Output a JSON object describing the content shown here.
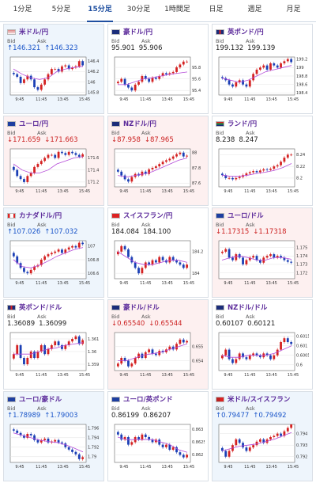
{
  "tabs": [
    {
      "label": "1分足",
      "active": false
    },
    {
      "label": "5分足",
      "active": false
    },
    {
      "label": "15分足",
      "active": true
    },
    {
      "label": "30分足",
      "active": false
    },
    {
      "label": "1時間足",
      "active": false
    },
    {
      "label": "日足",
      "active": false
    },
    {
      "label": "週足",
      "active": false
    },
    {
      "label": "月足",
      "active": false
    }
  ],
  "labels": {
    "bid": "Bid",
    "ask": "Ask"
  },
  "xticks": [
    "9:45",
    "11:45",
    "13:45",
    "15:45"
  ],
  "colors": {
    "up_bar": "#d42121",
    "down_bar": "#1b3fb5",
    "ma": "#b44ad8",
    "name": "#5b2a9a"
  },
  "cards": [
    {
      "name": "米ドル/円",
      "dir": "up",
      "bid": "146.321",
      "ask": "146.323",
      "flag": "us-flag-icon",
      "chart_data": {
        "type": "candlestick",
        "yticks": [
          "146.4",
          "146.2",
          "146",
          "145.8"
        ],
        "ylim": [
          145.75,
          146.48
        ],
        "closes": [
          146.15,
          146.1,
          145.98,
          146.05,
          146.12,
          146.05,
          145.9,
          145.85,
          145.95,
          146.05,
          146.15,
          146.25,
          146.25,
          146.2,
          146.3,
          146.32,
          146.25,
          146.28,
          146.3,
          146.4,
          146.32
        ],
        "ma": [
          146.25,
          146.15,
          146.08,
          146.05,
          146.08,
          146.2,
          146.25,
          146.28,
          146.3
        ]
      }
    },
    {
      "name": "豪ドル/円",
      "dir": "flat",
      "bid": "95.901",
      "ask": "95.906",
      "flag": "au-flag-icon",
      "chart_data": {
        "type": "candlestick",
        "yticks": [
          "95.8",
          "95.6",
          "95.4"
        ],
        "ylim": [
          95.32,
          95.98
        ],
        "closes": [
          95.55,
          95.6,
          95.5,
          95.45,
          95.4,
          95.5,
          95.55,
          95.65,
          95.6,
          95.55,
          95.62,
          95.6,
          95.65,
          95.7,
          95.68,
          95.7,
          95.72,
          95.8,
          95.85,
          95.9,
          95.9
        ],
        "ma": [
          95.5,
          95.5,
          95.55,
          95.6,
          95.62,
          95.65,
          95.68,
          95.7,
          95.72
        ]
      }
    },
    {
      "name": "英ポンド/円",
      "dir": "flat",
      "bid": "199.132",
      "ask": "199.139",
      "flag": "gb-flag-icon",
      "chart_data": {
        "type": "candlestick",
        "yticks": [
          "199.2",
          "199",
          "198.8",
          "198.6",
          "198.4"
        ],
        "ylim": [
          198.35,
          199.25
        ],
        "closes": [
          198.75,
          198.7,
          198.6,
          198.55,
          198.65,
          198.7,
          198.6,
          198.55,
          198.7,
          198.85,
          198.95,
          199.0,
          199.05,
          198.95,
          199.1,
          199.05,
          199.0,
          199.1,
          199.15,
          199.2,
          199.13
        ],
        "ma": [
          198.75,
          198.7,
          198.65,
          198.7,
          198.8,
          198.9,
          198.95,
          199.0,
          199.05
        ]
      }
    },
    {
      "name": "ユーロ/円",
      "dir": "down",
      "bid": "171.659",
      "ask": "171.663",
      "flag": "eu-flag-icon",
      "chart_data": {
        "type": "candlestick",
        "yticks": [
          "171.6",
          "171.4",
          "171.2"
        ],
        "ylim": [
          171.12,
          171.75
        ],
        "closes": [
          171.4,
          171.3,
          171.25,
          171.2,
          171.3,
          171.35,
          171.45,
          171.5,
          171.55,
          171.6,
          171.65,
          171.65,
          171.6,
          171.7,
          171.68,
          171.65,
          171.7,
          171.68,
          171.65,
          171.62,
          171.66
        ],
        "ma": [
          171.5,
          171.4,
          171.35,
          171.35,
          171.4,
          171.5,
          171.55,
          171.6,
          171.62
        ]
      }
    },
    {
      "name": "NZドル/円",
      "dir": "down",
      "bid": "87.958",
      "ask": "87.965",
      "flag": "nz-flag-icon",
      "chart_data": {
        "type": "candlestick",
        "yticks": [
          "88",
          "87.8",
          "87.6"
        ],
        "ylim": [
          87.55,
          88.05
        ],
        "closes": [
          87.75,
          87.7,
          87.65,
          87.62,
          87.68,
          87.72,
          87.7,
          87.75,
          87.72,
          87.78,
          87.8,
          87.82,
          87.85,
          87.88,
          87.9,
          87.92,
          87.95,
          87.98,
          88.0,
          87.95,
          87.96
        ],
        "ma": [
          87.7,
          87.68,
          87.7,
          87.72,
          87.75,
          87.8,
          87.85,
          87.9,
          87.93
        ]
      }
    },
    {
      "name": "ランド/円",
      "dir": "flat",
      "bid": "8.238",
      "ask": "8.247",
      "flag": "za-flag-icon",
      "chart_data": {
        "type": "candlestick",
        "yticks": [
          "8.24",
          "8.22",
          "8.2"
        ],
        "ylim": [
          8.185,
          8.25
        ],
        "closes": [
          8.205,
          8.2,
          8.2,
          8.198,
          8.2,
          8.202,
          8.205,
          8.208,
          8.21,
          8.212,
          8.21,
          8.213,
          8.215,
          8.214,
          8.216,
          8.22,
          8.222,
          8.228,
          8.235,
          8.24,
          8.24
        ],
        "ma": [
          8.205,
          8.203,
          8.203,
          8.205,
          8.208,
          8.21,
          8.213,
          8.218,
          8.225
        ]
      }
    },
    {
      "name": "カナダドル/円",
      "dir": "up",
      "bid": "107.026",
      "ask": "107.032",
      "flag": "ca-flag-icon",
      "chart_data": {
        "type": "candlestick",
        "yticks": [
          "107",
          "106.8",
          "106.6"
        ],
        "ylim": [
          106.52,
          107.08
        ],
        "closes": [
          106.85,
          106.75,
          106.68,
          106.62,
          106.6,
          106.65,
          106.7,
          106.72,
          106.8,
          106.85,
          106.88,
          106.9,
          106.92,
          106.95,
          106.9,
          106.95,
          106.98,
          107.0,
          106.98,
          107.05,
          107.03
        ],
        "ma": [
          106.8,
          106.7,
          106.68,
          106.72,
          106.78,
          106.85,
          106.9,
          106.95,
          106.98
        ]
      }
    },
    {
      "name": "スイスフラン/円",
      "dir": "flat",
      "bid": "184.084",
      "ask": "184.100",
      "flag": "ch-flag-icon",
      "chart_data": {
        "type": "candlestick",
        "yticks": [
          "184.2",
          "184"
        ],
        "ylim": [
          183.95,
          184.3
        ],
        "closes": [
          184.2,
          184.25,
          184.22,
          184.15,
          184.1,
          184.05,
          184.0,
          184.05,
          184.1,
          184.08,
          184.12,
          184.1,
          184.15,
          184.12,
          184.1,
          184.15,
          184.12,
          184.1,
          184.08,
          184.05,
          184.08
        ],
        "ma": [
          184.2,
          184.15,
          184.1,
          184.08,
          184.08,
          184.1,
          184.12,
          184.12,
          184.1
        ]
      }
    },
    {
      "name": "ユーロ/ドル",
      "dir": "down",
      "bid": "1.17315",
      "ask": "1.17318",
      "flag": "eu-flag-icon",
      "chart_data": {
        "type": "candlestick",
        "yticks": [
          "1.175",
          "1.174",
          "1.173",
          "1.172"
        ],
        "ylim": [
          1.1713,
          1.1758
        ],
        "closes": [
          1.1745,
          1.1748,
          1.1738,
          1.1735,
          1.1742,
          1.1738,
          1.173,
          1.1735,
          1.1738,
          1.174,
          1.1735,
          1.1732,
          1.1738,
          1.174,
          1.1742,
          1.1738,
          1.174,
          1.1738,
          1.1735,
          1.1733,
          1.1732
        ],
        "ma": [
          1.1735,
          1.1738,
          1.174,
          1.1738,
          1.1735,
          1.1735,
          1.1738,
          1.1738,
          1.1736
        ]
      }
    },
    {
      "name": "英ポンド/ドル",
      "dir": "flat",
      "bid": "1.36089",
      "ask": "1.36099",
      "flag": "gb-flag-icon",
      "chart_data": {
        "type": "candlestick",
        "yticks": [
          "1.361",
          "1.36",
          "1.359"
        ],
        "ylim": [
          1.3585,
          1.3615
        ],
        "closes": [
          1.3598,
          1.3605,
          1.3595,
          1.359,
          1.3595,
          1.36,
          1.3595,
          1.36,
          1.3605,
          1.3598,
          1.3602,
          1.3605,
          1.3608,
          1.3605,
          1.3602,
          1.3605,
          1.3608,
          1.361,
          1.3612,
          1.3606,
          1.3609
        ],
        "ma": [
          1.3598,
          1.3598,
          1.3598,
          1.36,
          1.3602,
          1.3603,
          1.3605,
          1.3606,
          1.3607
        ]
      }
    },
    {
      "name": "豪ドル/ドル",
      "dir": "down",
      "bid": "0.65540",
      "ask": "0.65544",
      "flag": "au-flag-icon",
      "chart_data": {
        "type": "candlestick",
        "yticks": [
          "0.655",
          "0.654"
        ],
        "ylim": [
          0.6533,
          0.656
        ],
        "closes": [
          0.6538,
          0.6542,
          0.654,
          0.6536,
          0.6538,
          0.6542,
          0.6545,
          0.6542,
          0.6546,
          0.6548,
          0.6545,
          0.6544,
          0.6547,
          0.6546,
          0.6548,
          0.655,
          0.6548,
          0.6552,
          0.6555,
          0.6553,
          0.6554
        ],
        "ma": [
          0.654,
          0.654,
          0.6542,
          0.6544,
          0.6545,
          0.6546,
          0.6548,
          0.655,
          0.6552
        ]
      }
    },
    {
      "name": "NZドル/ドル",
      "dir": "flat",
      "bid": "0.60107",
      "ask": "0.60121",
      "flag": "nz-flag-icon",
      "chart_data": {
        "type": "candlestick",
        "yticks": [
          "0.6015",
          "0.601",
          "0.6005",
          "0.6"
        ],
        "ylim": [
          0.5997,
          0.6017
        ],
        "closes": [
          0.6005,
          0.6008,
          0.6003,
          0.6001,
          0.6003,
          0.6006,
          0.6004,
          0.6003,
          0.6005,
          0.6006,
          0.6005,
          0.6004,
          0.6006,
          0.6005,
          0.6003,
          0.6005,
          0.6008,
          0.6012,
          0.6014,
          0.6012,
          0.6011
        ],
        "ma": [
          0.6005,
          0.6004,
          0.6004,
          0.6005,
          0.6005,
          0.6005,
          0.6006,
          0.6008,
          0.601
        ]
      }
    },
    {
      "name": "ユーロ/豪ドル",
      "dir": "up",
      "bid": "1.78989",
      "ask": "1.79003",
      "flag": "eu-flag-icon",
      "chart_data": {
        "type": "candlestick",
        "yticks": [
          "1.796",
          "1.794",
          "1.792",
          "1.79"
        ],
        "ylim": [
          1.7888,
          1.7968
        ],
        "closes": [
          1.7955,
          1.795,
          1.7945,
          1.794,
          1.7948,
          1.7945,
          1.7935,
          1.793,
          1.7935,
          1.7938,
          1.793,
          1.7932,
          1.7935,
          1.793,
          1.7928,
          1.792,
          1.7915,
          1.791,
          1.7905,
          1.7895,
          1.7899
        ],
        "ma": [
          1.795,
          1.7945,
          1.794,
          1.7935,
          1.7932,
          1.793,
          1.7925,
          1.7918,
          1.791
        ]
      }
    },
    {
      "name": "ユーロ/英ポンド",
      "dir": "flat",
      "bid": "0.86199",
      "ask": "0.86207",
      "flag": "eu-flag-icon",
      "chart_data": {
        "type": "candlestick",
        "yticks": [
          "0.863",
          "0.8625",
          "0.862"
        ],
        "ylim": [
          0.8617,
          0.8632
        ],
        "closes": [
          0.8628,
          0.8626,
          0.8627,
          0.8624,
          0.8625,
          0.8627,
          0.8626,
          0.8628,
          0.8627,
          0.8626,
          0.8625,
          0.8626,
          0.8624,
          0.8623,
          0.8624,
          0.8622,
          0.8623,
          0.8621,
          0.862,
          0.8619,
          0.862
        ],
        "ma": [
          0.8627,
          0.8626,
          0.8626,
          0.8626,
          0.8626,
          0.8625,
          0.8624,
          0.8622,
          0.8621
        ]
      }
    },
    {
      "name": "米ドル/スイスフラン",
      "dir": "up",
      "bid": "0.79477",
      "ask": "0.79492",
      "flag": "us-ch-flag-icon",
      "chart_data": {
        "type": "candlestick",
        "yticks": [
          "0.794",
          "0.793",
          "0.792"
        ],
        "ylim": [
          0.7915,
          0.7948
        ],
        "closes": [
          0.7925,
          0.792,
          0.7925,
          0.793,
          0.7935,
          0.7932,
          0.7928,
          0.7925,
          0.7928,
          0.793,
          0.7933,
          0.7935,
          0.7932,
          0.7935,
          0.7937,
          0.7938,
          0.794,
          0.7938,
          0.7942,
          0.7945,
          0.7948
        ],
        "ma": [
          0.7925,
          0.7927,
          0.7929,
          0.793,
          0.7931,
          0.7933,
          0.7935,
          0.7938,
          0.7941
        ]
      }
    }
  ]
}
